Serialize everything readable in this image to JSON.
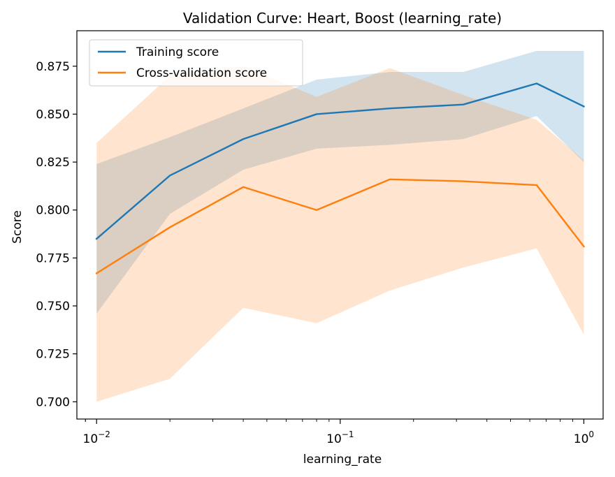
{
  "chart_data": {
    "type": "line",
    "title": "Validation Curve: Heart, Boost (learning_rate)",
    "xlabel": "learning_rate",
    "ylabel": "Score",
    "xscale": "log",
    "xlim": [
      0.0083,
      1.2
    ],
    "ylim": [
      0.691,
      0.8935
    ],
    "x": [
      0.01,
      0.02,
      0.04,
      0.08,
      0.16,
      0.32,
      0.64,
      1.0
    ],
    "x_ticks": [
      0.01,
      0.1,
      1.0
    ],
    "x_tick_labels": [
      {
        "base": "10",
        "exp": "−2"
      },
      {
        "base": "10",
        "exp": "−1"
      },
      {
        "base": "10",
        "exp": "0"
      }
    ],
    "y_ticks": [
      0.7,
      0.725,
      0.75,
      0.775,
      0.8,
      0.825,
      0.85,
      0.875
    ],
    "y_tick_labels": [
      "0.700",
      "0.725",
      "0.750",
      "0.775",
      "0.800",
      "0.825",
      "0.850",
      "0.875"
    ],
    "legend": "top-left",
    "grid": false,
    "series": [
      {
        "name": "Training score",
        "color": "#1f77b4",
        "band_color": "#a6c8e4",
        "values": [
          0.785,
          0.818,
          0.837,
          0.85,
          0.853,
          0.855,
          0.866,
          0.854
        ],
        "lower": [
          0.746,
          0.798,
          0.821,
          0.832,
          0.834,
          0.837,
          0.849,
          0.825
        ],
        "upper": [
          0.824,
          0.838,
          0.853,
          0.868,
          0.872,
          0.872,
          0.883,
          0.883
        ]
      },
      {
        "name": "Cross-validation score",
        "color": "#ff7f0e",
        "band_color": "#ffcc99",
        "values": [
          0.767,
          0.791,
          0.812,
          0.8,
          0.816,
          0.815,
          0.813,
          0.781
        ],
        "lower": [
          0.7,
          0.712,
          0.749,
          0.741,
          0.758,
          0.77,
          0.78,
          0.735
        ],
        "upper": [
          0.835,
          0.87,
          0.875,
          0.859,
          0.874,
          0.86,
          0.847,
          0.826
        ]
      }
    ]
  }
}
